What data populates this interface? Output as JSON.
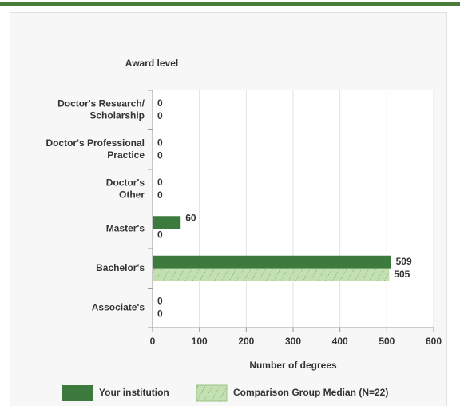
{
  "chart_data": {
    "type": "bar",
    "orientation": "horizontal",
    "title": "Award level",
    "xlabel": "Number of degrees",
    "categories": [
      [
        "Doctor's Research/",
        "Scholarship"
      ],
      [
        "Doctor's Professional",
        "Practice"
      ],
      [
        "Doctor's",
        "Other"
      ],
      [
        "Master's"
      ],
      [
        "Bachelor's"
      ],
      [
        "Associate's"
      ]
    ],
    "series": [
      {
        "name": "Your institution",
        "color": "#3d7a3d",
        "values": [
          0,
          0,
          0,
          60,
          509,
          0
        ]
      },
      {
        "name": "Comparison Group Median (N=22)",
        "color": "#c3e0b2",
        "values": [
          0,
          0,
          0,
          0,
          505,
          0
        ]
      }
    ],
    "xlim": [
      0,
      600
    ],
    "xticks": [
      0,
      100,
      200,
      300,
      400,
      500,
      600
    ],
    "grid": true
  }
}
